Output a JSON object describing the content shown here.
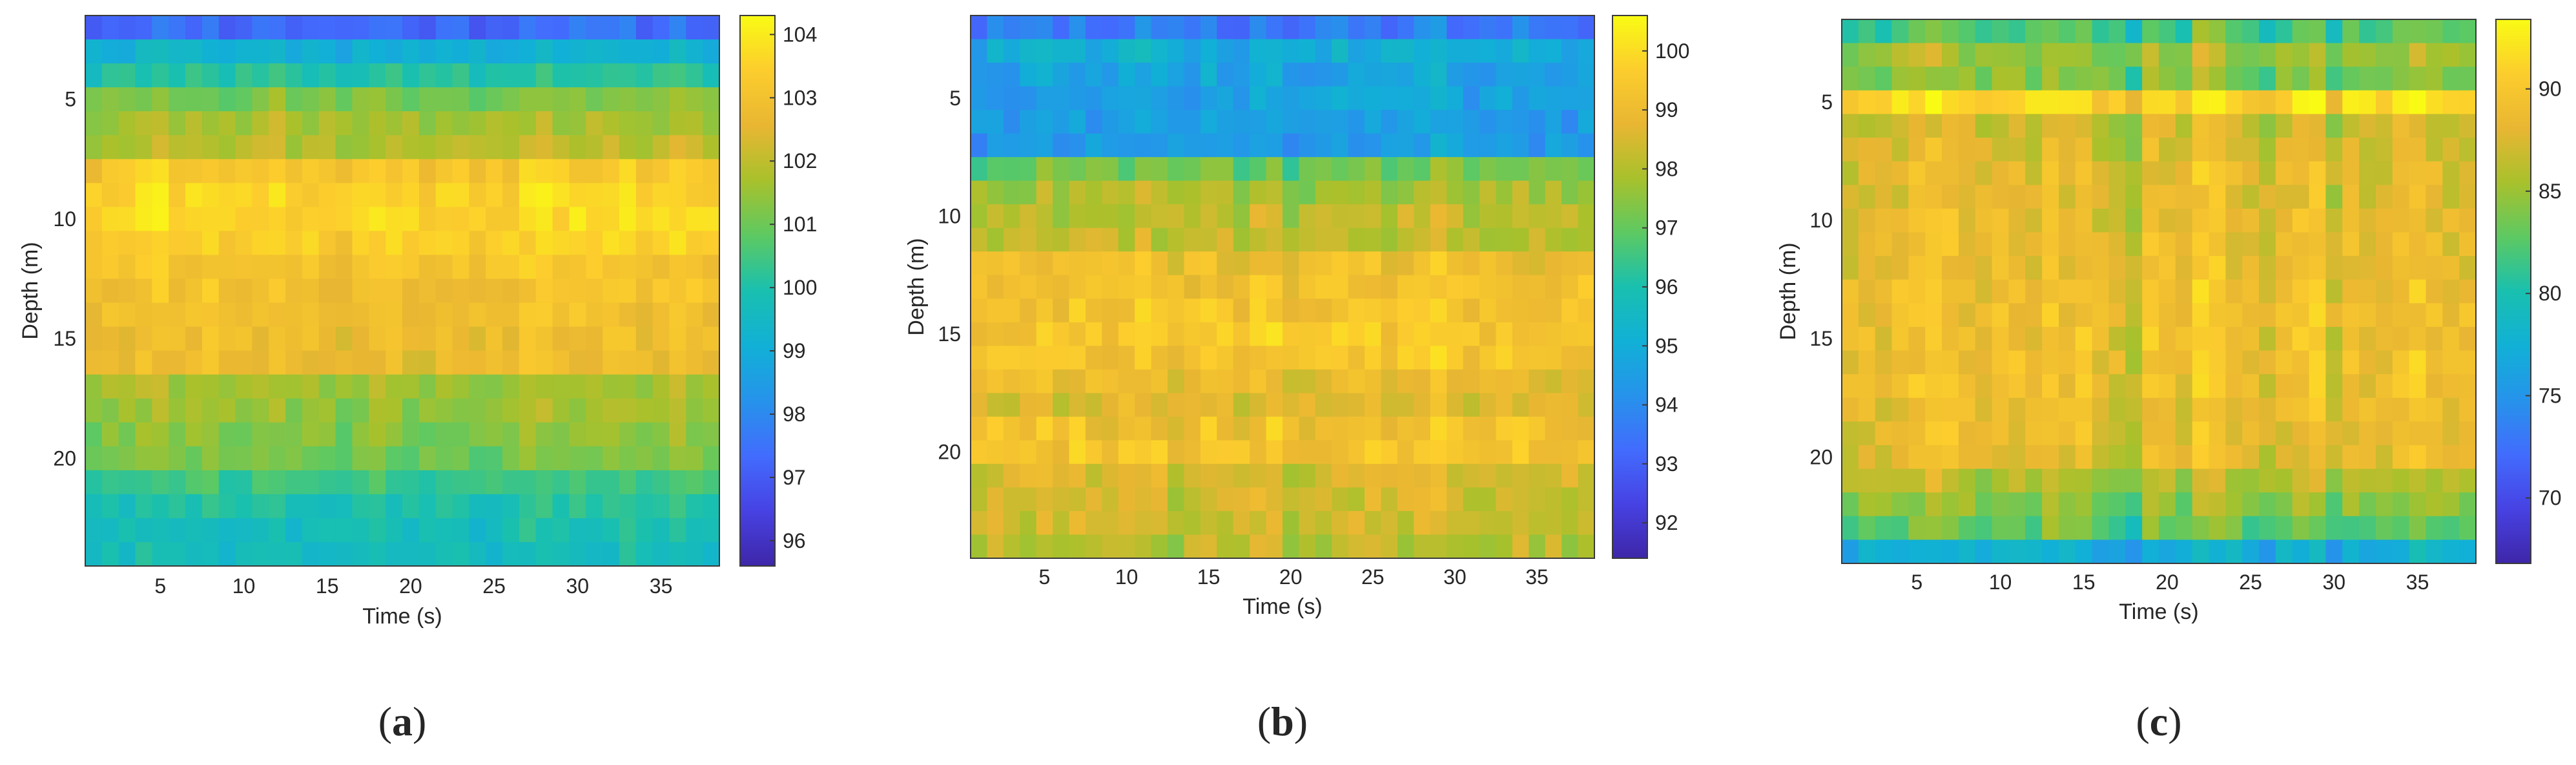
{
  "chart_data": [
    {
      "type": "heatmap",
      "panel_label": "a",
      "xlabel": "Time (s)",
      "ylabel": "Depth (m)",
      "x_ticks": [
        5,
        10,
        15,
        20,
        25,
        30,
        35
      ],
      "y_ticks": [
        5,
        10,
        15,
        20
      ],
      "xlim": [
        0.5,
        38.5
      ],
      "ylim": [
        24.5,
        1.5
      ],
      "colorbar_ticks": [
        96,
        97,
        98,
        99,
        100,
        101,
        102,
        103,
        104
      ],
      "clim": [
        95.6,
        104.3
      ],
      "colormap": "parula",
      "grid_columns": 38,
      "depth_rows": [
        2,
        3,
        4,
        5,
        6,
        7,
        8,
        9,
        10,
        11,
        12,
        13,
        14,
        15,
        16,
        17,
        18,
        19,
        20,
        21,
        22,
        23,
        24
      ],
      "depth_profile": [
        97.4,
        99.2,
        100.1,
        101.2,
        101.7,
        101.9,
        103.2,
        103.5,
        103.6,
        103.4,
        103.1,
        103.0,
        102.9,
        102.8,
        102.7,
        101.6,
        101.5,
        101.3,
        101.1,
        100.4,
        100.0,
        99.8,
        99.7
      ],
      "time_modulation": [
        0.25,
        0.55,
        0.35,
        0.75,
        0.95,
        0.45,
        0.7,
        0.8,
        0.35,
        0.5,
        0.55,
        0.9,
        0.3,
        0.55,
        0.4,
        0.2,
        0.5,
        0.75,
        0.6,
        0.35,
        0.3,
        0.45,
        0.55,
        0.25,
        0.4,
        0.5,
        0.85,
        0.95,
        0.6,
        0.75,
        0.55,
        0.65,
        0.8,
        0.45,
        0.6,
        1.0,
        0.7,
        0.5
      ],
      "time_modulation_amplitude": 0.7,
      "noise_amplitude": 0.35,
      "seed": 11
    },
    {
      "type": "heatmap",
      "panel_label": "b",
      "xlabel": "Time (s)",
      "ylabel": "Depth (m)",
      "x_ticks": [
        5,
        10,
        15,
        20,
        25,
        30,
        35
      ],
      "y_ticks": [
        5,
        10,
        15,
        20
      ],
      "xlim": [
        0.5,
        38.5
      ],
      "ylim": [
        24.5,
        1.5
      ],
      "colorbar_ticks": [
        92,
        93,
        94,
        95,
        96,
        97,
        98,
        99,
        100
      ],
      "clim": [
        91.4,
        100.6
      ],
      "colormap": "parula",
      "grid_columns": 38,
      "depth_rows": [
        2,
        3,
        4,
        5,
        6,
        7,
        8,
        9,
        10,
        11,
        12,
        13,
        14,
        15,
        16,
        17,
        18,
        19,
        20,
        21,
        22,
        23,
        24
      ],
      "depth_profile": [
        93.6,
        95.0,
        94.6,
        94.6,
        94.5,
        94.4,
        97.1,
        97.9,
        98.2,
        98.2,
        99.0,
        99.2,
        99.3,
        99.4,
        99.4,
        98.9,
        98.7,
        99.2,
        99.3,
        98.6,
        98.4,
        98.3,
        98.1
      ],
      "time_modulation": [
        0.3,
        0.6,
        0.45,
        0.55,
        0.7,
        0.35,
        0.75,
        0.5,
        0.4,
        0.6,
        0.85,
        0.55,
        0.3,
        0.45,
        0.8,
        0.5,
        0.35,
        0.7,
        0.9,
        0.15,
        0.25,
        0.5,
        0.7,
        0.6,
        0.8,
        0.45,
        0.55,
        0.75,
        1.0,
        0.6,
        0.35,
        0.5,
        0.55,
        0.65,
        0.45,
        0.5,
        0.4,
        0.55
      ],
      "time_modulation_amplitude": 0.9,
      "noise_amplitude": 0.5,
      "seed": 29
    },
    {
      "type": "heatmap",
      "panel_label": "c",
      "xlabel": "Time (s)",
      "ylabel": "Depth (m)",
      "x_ticks": [
        5,
        10,
        15,
        20,
        25,
        30,
        35
      ],
      "y_ticks": [
        5,
        10,
        15,
        20
      ],
      "xlim": [
        0.5,
        38.5
      ],
      "ylim": [
        24.5,
        1.5
      ],
      "colorbar_ticks": [
        70,
        75,
        80,
        85,
        90
      ],
      "clim": [
        66.8,
        93.4
      ],
      "colormap": "parula",
      "grid_columns": 38,
      "depth_rows": [
        2,
        3,
        4,
        5,
        6,
        7,
        8,
        9,
        10,
        11,
        12,
        13,
        14,
        15,
        16,
        17,
        18,
        19,
        20,
        21,
        22,
        23,
        24
      ],
      "depth_profile": [
        82,
        85,
        84,
        91.5,
        87,
        87.5,
        88,
        88,
        88.5,
        88.5,
        88.5,
        89,
        89,
        89,
        89,
        89,
        88.5,
        88.5,
        88,
        86,
        84.5,
        83,
        77.5
      ],
      "time_modulation": [
        0.35,
        0.45,
        0.4,
        0.55,
        0.7,
        0.85,
        0.75,
        0.5,
        0.4,
        0.65,
        0.6,
        0.45,
        0.8,
        0.55,
        0.7,
        0.35,
        0.25,
        0.0,
        0.75,
        0.6,
        0.4,
        1.0,
        0.85,
        0.55,
        0.45,
        0.2,
        0.5,
        0.7,
        0.85,
        0.1,
        0.55,
        0.45,
        0.4,
        0.65,
        0.8,
        0.55,
        0.4,
        0.5
      ],
      "time_modulation_amplitude": 4.5,
      "noise_amplitude": 1.4,
      "seed": 47
    }
  ]
}
